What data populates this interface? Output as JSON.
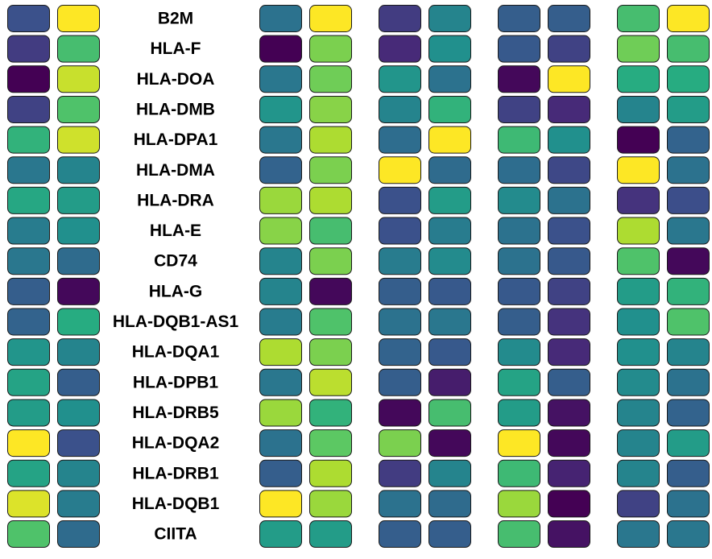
{
  "chart_data": {
    "type": "heatmap",
    "colormap": "viridis",
    "colormap_stops": [
      "#440154",
      "#472c7a",
      "#3b518b",
      "#2c718e",
      "#21908d",
      "#27ad81",
      "#5cc863",
      "#aadc32",
      "#fde725"
    ],
    "value_range": [
      0,
      1
    ],
    "rows": [
      "B2M",
      "HLA-F",
      "HLA-DOA",
      "HLA-DMB",
      "HLA-DPA1",
      "HLA-DMA",
      "HLA-DRA",
      "HLA-E",
      "CD74",
      "HLA-G",
      "HLA-DQB1-AS1",
      "HLA-DQA1",
      "HLA-DPB1",
      "HLA-DRB5",
      "HLA-DQA2",
      "HLA-DRB1",
      "HLA-DQB1",
      "CIITA"
    ],
    "values": [
      [
        0.25,
        1.0,
        0.38,
        1.0,
        0.18,
        0.45,
        0.3,
        0.3,
        0.7,
        1.0
      ],
      [
        0.18,
        0.7,
        0.0,
        0.8,
        0.12,
        0.5,
        0.28,
        0.2,
        0.78,
        0.7
      ],
      [
        0.0,
        0.92,
        0.4,
        0.78,
        0.52,
        0.38,
        0.02,
        1.0,
        0.62,
        0.62
      ],
      [
        0.2,
        0.72,
        0.52,
        0.82,
        0.45,
        0.65,
        0.2,
        0.12,
        0.45,
        0.55
      ],
      [
        0.65,
        0.93,
        0.4,
        0.88,
        0.36,
        1.0,
        0.68,
        0.5,
        0.0,
        0.32
      ],
      [
        0.4,
        0.45,
        0.32,
        0.8,
        1.0,
        0.35,
        0.36,
        0.22,
        1.0,
        0.38
      ],
      [
        0.6,
        0.55,
        0.85,
        0.88,
        0.25,
        0.55,
        0.48,
        0.38,
        0.15,
        0.24
      ],
      [
        0.42,
        0.5,
        0.82,
        0.7,
        0.25,
        0.42,
        0.38,
        0.25,
        0.88,
        0.4
      ],
      [
        0.4,
        0.35,
        0.45,
        0.8,
        0.42,
        0.48,
        0.38,
        0.28,
        0.72,
        0.02
      ],
      [
        0.3,
        0.02,
        0.45,
        0.02,
        0.3,
        0.28,
        0.28,
        0.2,
        0.55,
        0.65
      ],
      [
        0.32,
        0.62,
        0.42,
        0.72,
        0.38,
        0.4,
        0.3,
        0.15,
        0.5,
        0.72
      ],
      [
        0.52,
        0.45,
        0.88,
        0.8,
        0.32,
        0.28,
        0.48,
        0.12,
        0.5,
        0.45
      ],
      [
        0.58,
        0.3,
        0.4,
        0.9,
        0.3,
        0.08,
        0.58,
        0.3,
        0.48,
        0.38
      ],
      [
        0.55,
        0.5,
        0.85,
        0.65,
        0.02,
        0.7,
        0.55,
        0.05,
        0.45,
        0.32
      ],
      [
        1.0,
        0.25,
        0.38,
        0.75,
        0.8,
        0.02,
        1.0,
        0.02,
        0.45,
        0.55
      ],
      [
        0.58,
        0.45,
        0.3,
        0.88,
        0.18,
        0.45,
        0.68,
        0.1,
        0.45,
        0.3
      ],
      [
        0.95,
        0.42,
        1.0,
        0.85,
        0.38,
        0.35,
        0.85,
        0.0,
        0.2,
        0.38
      ],
      [
        0.72,
        0.35,
        0.55,
        0.55,
        0.3,
        0.3,
        0.7,
        0.05,
        0.4,
        0.4
      ]
    ]
  }
}
